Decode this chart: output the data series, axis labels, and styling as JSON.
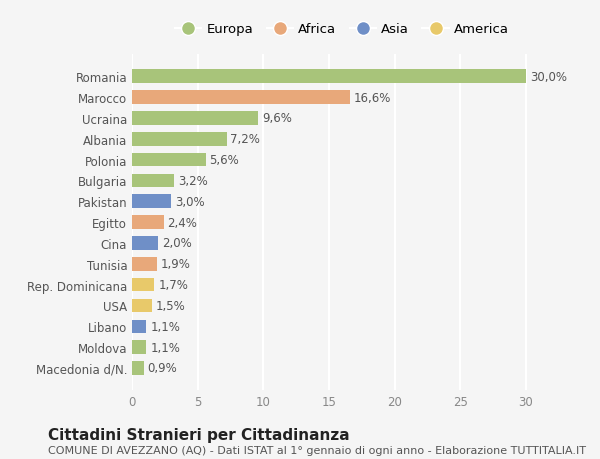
{
  "categories": [
    "Macedonia d/N.",
    "Moldova",
    "Libano",
    "USA",
    "Rep. Dominicana",
    "Tunisia",
    "Cina",
    "Egitto",
    "Pakistan",
    "Bulgaria",
    "Polonia",
    "Albania",
    "Ucraina",
    "Marocco",
    "Romania"
  ],
  "values": [
    0.9,
    1.1,
    1.1,
    1.5,
    1.7,
    1.9,
    2.0,
    2.4,
    3.0,
    3.2,
    5.6,
    7.2,
    9.6,
    16.6,
    30.0
  ],
  "labels": [
    "0,9%",
    "1,1%",
    "1,1%",
    "1,5%",
    "1,7%",
    "1,9%",
    "2,0%",
    "2,4%",
    "3,0%",
    "3,2%",
    "5,6%",
    "7,2%",
    "9,6%",
    "16,6%",
    "30,0%"
  ],
  "colors": [
    "#a8c47a",
    "#a8c47a",
    "#6f8fc7",
    "#e8c96a",
    "#e8c96a",
    "#e8a87a",
    "#6f8fc7",
    "#e8a87a",
    "#6f8fc7",
    "#a8c47a",
    "#a8c47a",
    "#a8c47a",
    "#a8c47a",
    "#e8a87a",
    "#a8c47a"
  ],
  "legend_labels": [
    "Europa",
    "Africa",
    "Asia",
    "America"
  ],
  "legend_colors": [
    "#a8c47a",
    "#e8a87a",
    "#6f8fc7",
    "#e8c96a"
  ],
  "title": "Cittadini Stranieri per Cittadinanza",
  "subtitle": "COMUNE DI AVEZZANO (AQ) - Dati ISTAT al 1° gennaio di ogni anno - Elaborazione TUTTITALIA.IT",
  "xlim": [
    0,
    32
  ],
  "xticks": [
    0,
    5,
    10,
    15,
    20,
    25,
    30
  ],
  "bg_color": "#f5f5f5",
  "grid_color": "#ffffff",
  "bar_height": 0.65,
  "label_fontsize": 8.5,
  "tick_fontsize": 8.5,
  "title_fontsize": 11,
  "subtitle_fontsize": 8
}
